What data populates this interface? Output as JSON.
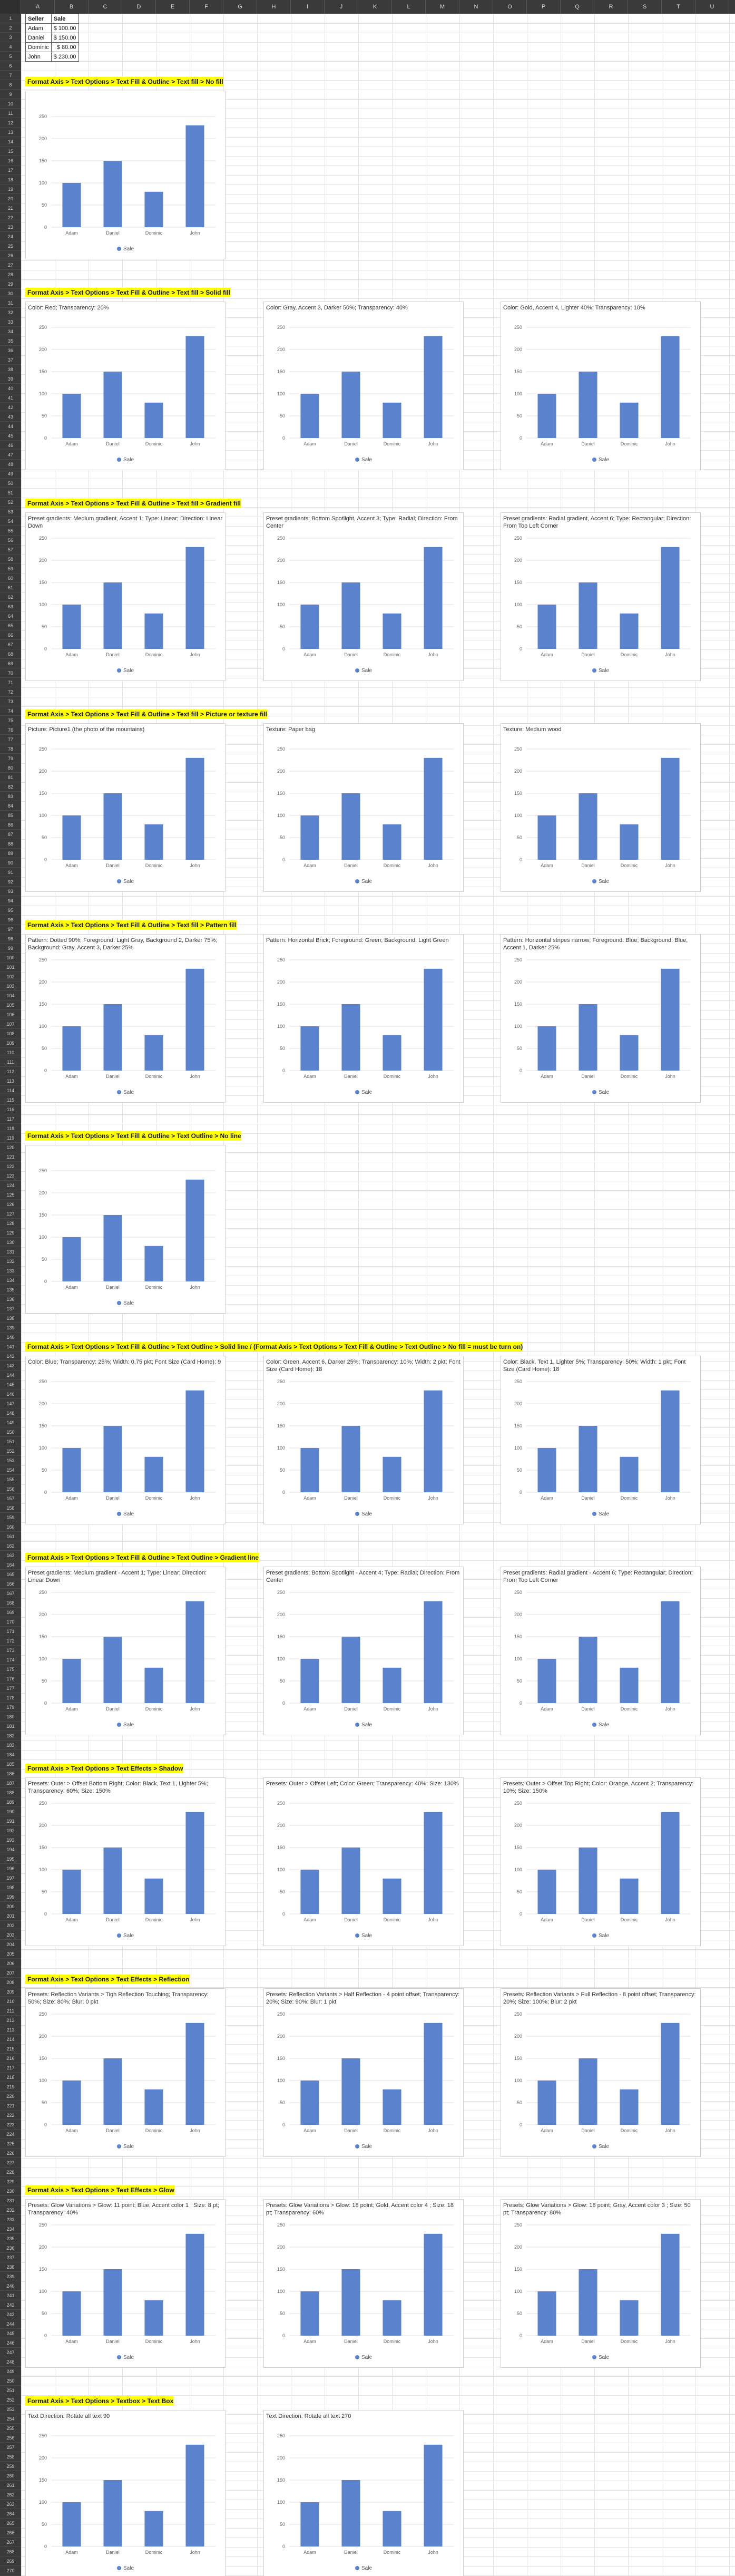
{
  "columns": [
    "A",
    "B",
    "C",
    "D",
    "E",
    "F",
    "G",
    "H",
    "I",
    "J",
    "K",
    "L",
    "M",
    "N",
    "O",
    "P",
    "Q",
    "R",
    "S",
    "T",
    "U"
  ],
  "source_table": {
    "headers": [
      "Seller",
      "Sale"
    ],
    "rows": [
      {
        "seller": "Adam",
        "sale": "$ 100.00"
      },
      {
        "seller": "Daniel",
        "sale": "$ 150.00"
      },
      {
        "seller": "Dominic",
        "sale": "$ 80.00"
      },
      {
        "seller": "John",
        "sale": "$ 230.00"
      }
    ]
  },
  "chart_data": {
    "type": "bar",
    "categories": [
      "Adam",
      "Daniel",
      "Dominic",
      "John"
    ],
    "series": [
      {
        "name": "Sale",
        "values": [
          100,
          150,
          80,
          230
        ],
        "color": "#5b82cc"
      }
    ],
    "ylim": [
      0,
      250
    ],
    "yticks": [
      "0",
      "50",
      "100",
      "150",
      "200",
      "250"
    ],
    "grid": true,
    "legend": "bottom"
  },
  "sections": [
    {
      "banner": "Format Axis > Text Options > Text Fill & Outline > Text fill > No fill",
      "charts": [
        ""
      ]
    },
    {
      "banner": "Format Axis > Text Options > Text Fill & Outline > Text fill > Solid fill",
      "charts": [
        "Color: Red; Transparency: 20%",
        "Color: Gray, Accent 3, Darker 50%; Transparency: 40%",
        "Color: Gold, Accent 4, Lighter 40%; Transparency: 10%"
      ]
    },
    {
      "banner": "Format Axis > Text Options > Text Fill & Outline > Text fill > Gradient fill",
      "charts": [
        "Preset gradients: Medium gradient, Accent 1; Type: Linear; Direction: Linear Down",
        "Preset gradients: Bottom Spotlight, Accent 3; Type: Radial; Direction: From Center",
        "Preset gradients: Radial gradient, Accent 6; Type: Rectangular; Direction: From Top Left Corner"
      ]
    },
    {
      "banner": "Format Axis > Text Options > Text Fill & Outline > Text fill > Picture or texture fill",
      "charts": [
        "Picture: Picture1 (the photo of the mountains)",
        "Texture: Paper bag",
        "Texture: Medium wood"
      ]
    },
    {
      "banner": "Format Axis > Text Options > Text Fill & Outline > Text fill > Pattern fill",
      "charts": [
        "Pattern: Dotted 90%; Foreground: Light Gray, Background 2, Darker 75%; Background: Gray, Accent 3, Darker 25%",
        "Pattern: Horizontal Brick; Foreground: Green; Background: Light Green",
        "Pattern: Horizontal stripes narrow; Foreground: Blue; Background: Blue, Accent 1, Darker 25%"
      ]
    },
    {
      "banner": "Format Axis > Text Options > Text Fill & Outline > Text Outline > No line",
      "charts": [
        ""
      ]
    },
    {
      "banner": "Format Axis > Text Options > Text Fill & Outline > Text Outline > Solid line / (Format Axis > Text Options > Text Fill & Outline > Text Outline > No fill = must be turn on)",
      "charts": [
        "Color: Blue; Transparency: 25%; Width: 0,75 pkt; Font Size (Card Home): 9",
        "Color: Green, Accent 6, Darker 25%; Transparency: 10%; Width: 2 pkt; Font Size (Card Home): 18",
        "Color: Black, Text 1, Lighter 5%; Transparency: 50%; Width: 1 pkt; Font Size (Card Home): 18"
      ]
    },
    {
      "banner": "Format Axis > Text Options > Text Fill & Outline > Text Outline > Gradient line",
      "charts": [
        "Preset gradients: Medium gradient - Accent 1; Type: Linear; Direction: Linear Down",
        "Preset gradients: Bottom Spotlight - Accent 4; Type: Radial; Direction: From Center",
        "Preset gradients: Radial gradient - Accent 6; Type: Rectangular; Direction: From Top Left Corner"
      ]
    },
    {
      "banner": "Format Axis > Text Options > Text Effects > Shadow",
      "charts": [
        "Presets: Outer > Offset Bottom Right; Color: Black, Text 1, Lighter 5%; Transparency: 60%; Size: 150%",
        "Presets: Outer > Offset Left; Color: Green; Transparency: 40%; Size: 130%",
        "Presets: Outer > Offset Top Right; Color: Orange, Accent 2; Transparency: 10%; Size: 150%"
      ]
    },
    {
      "banner": "Format Axis > Text Options > Text Effects > Reflection",
      "charts": [
        "Presets: Reflection Variants > Tigh Reflection Touching; Transparency: 50%; Size: 80%; Blur: 0 pkt",
        "Presets: Reflection Variants > Half Reflection - 4 point offset; Transparency: 20%; Size: 90%; Blur: 1 pkt",
        "Presets: Reflection Variants > Full Reflection - 8 point offset; Transparency: 20%; Size: 100%; Blur: 2 pkt"
      ]
    },
    {
      "banner": "Format Axis > Text Options > Text Effects > Glow",
      "charts": [
        "Presets: Glow Variations > Glow: 11 point; Blue, Accent color 1 ; Size: 8 pt; Transparency: 40%",
        "Presets: Glow Variations > Glow: 18 point; Gold, Accent color 4 ; Size: 18 pt; Transparency: 60%",
        "Presets: Glow Variations > Glow: 18 point; Gray, Accent color 3 ; Size: 50 pt; Transparency: 80%"
      ]
    },
    {
      "banner": "Format Axis > Text Options > Textbox > Text Box",
      "charts": [
        "Text Direction: Rotate all text 90",
        "Text Direction: Rotate all text 270"
      ]
    }
  ]
}
